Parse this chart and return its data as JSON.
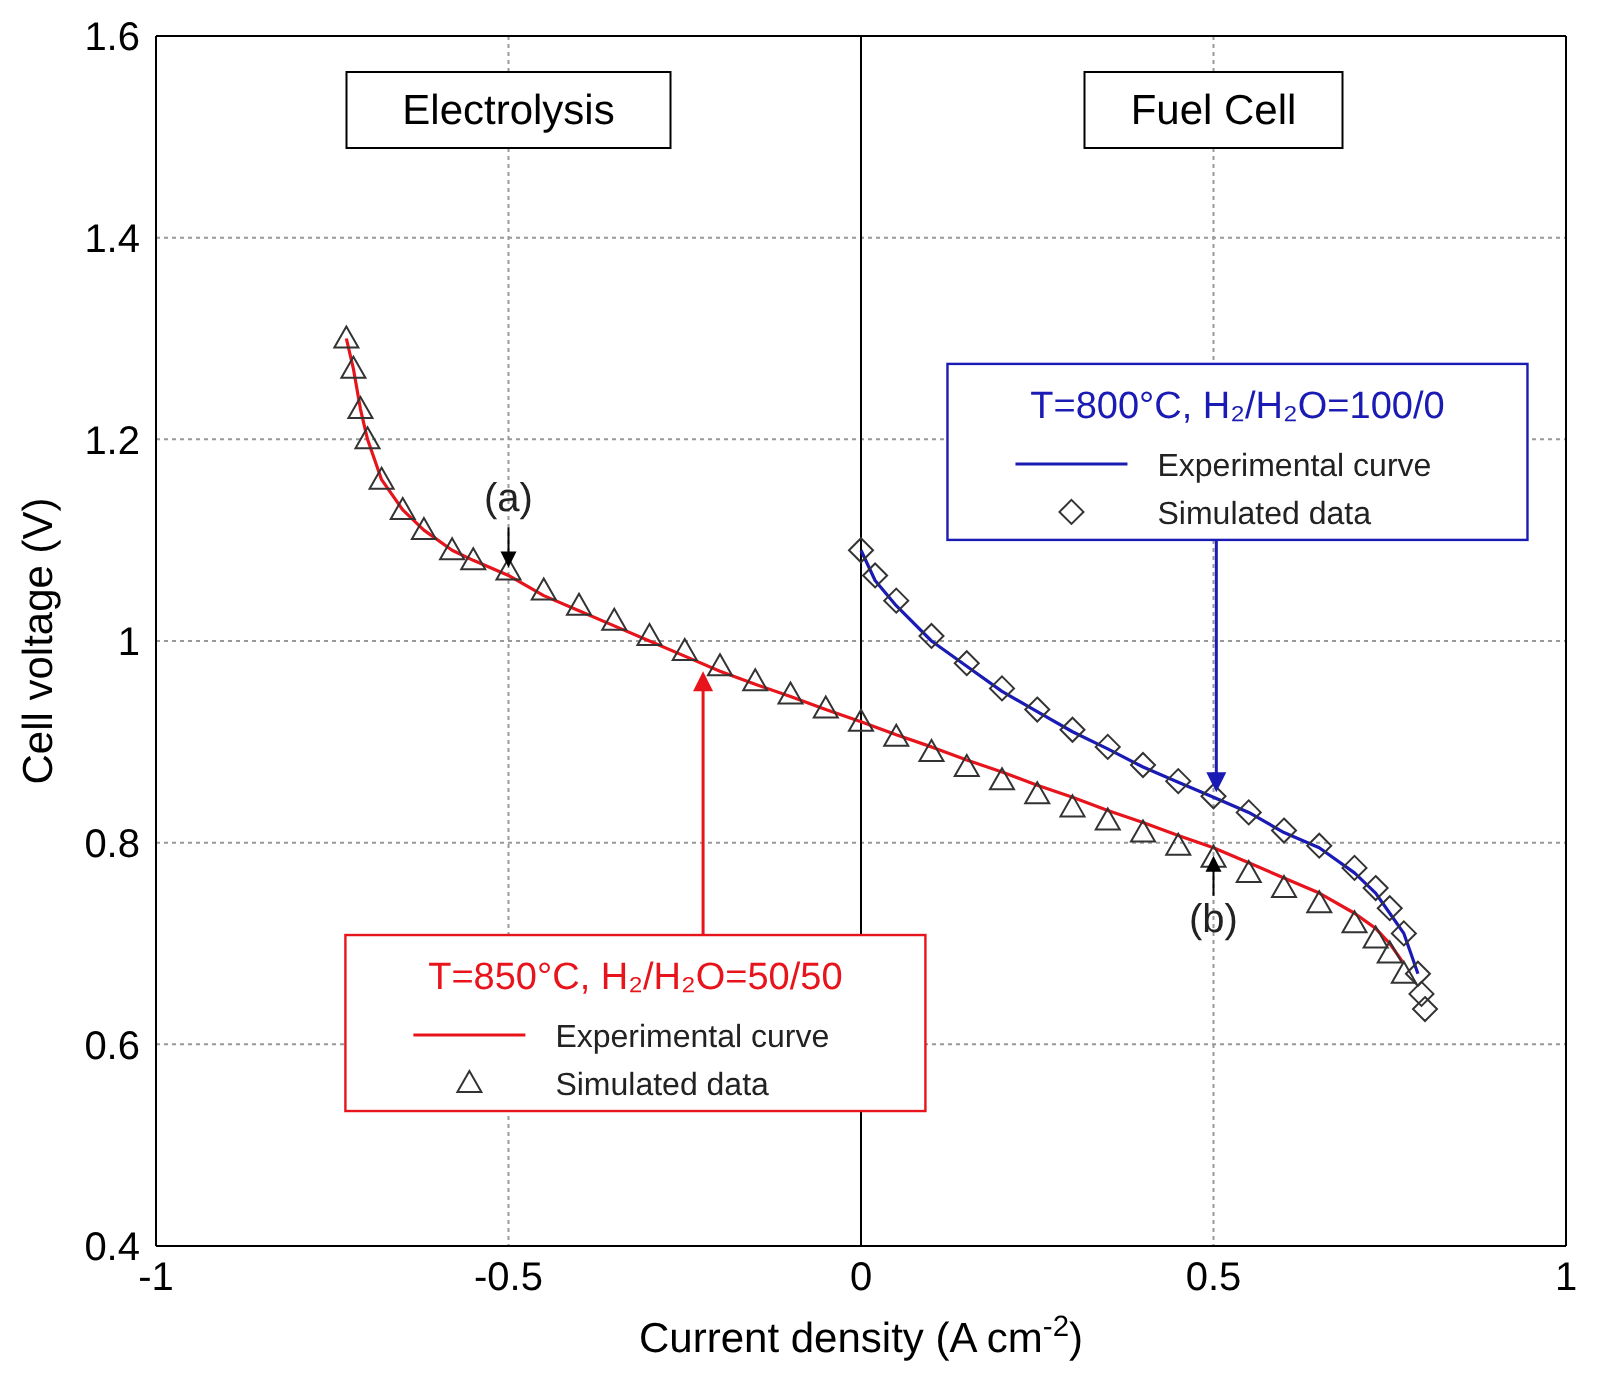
{
  "chart_data": {
    "type": "line",
    "xlabel": "Current density (A cm$^{-2}$)",
    "ylabel": "Cell voltage (V)",
    "xlim": [
      -1,
      1
    ],
    "xticks": [
      -1,
      -0.5,
      0,
      0.5,
      1
    ],
    "ylim": [
      0.4,
      1.6
    ],
    "yticks": [
      0.4,
      0.6,
      0.8,
      1,
      1.2,
      1.4,
      1.6
    ],
    "grid": true,
    "legend": "center",
    "ref_lines": [
      {
        "axis": "x",
        "value": 0,
        "color": "#000000",
        "line_style": "solid"
      }
    ],
    "annotations": [
      "Electrolysis",
      "Fuel Cell",
      {
        "text": "(a)",
        "x": -0.5,
        "y": 1.065
      },
      {
        "text": "(b)",
        "x": 0.5,
        "y": 0.795
      },
      "T=850°C, H₂/H₂O=50/50",
      "T=800°C, H₂/H₂O=100/0"
    ],
    "series": [
      {
        "name": "Experimental curve",
        "marker": "none",
        "color": "#e8141c",
        "x": [
          -0.73,
          -0.72,
          -0.71,
          -0.7,
          -0.68,
          -0.65,
          -0.62,
          -0.58,
          -0.55,
          -0.5,
          -0.45,
          -0.4,
          -0.35,
          -0.3,
          -0.25,
          -0.2,
          -0.15,
          -0.1,
          -0.05,
          0,
          0.05,
          0.1,
          0.15,
          0.2,
          0.25,
          0.3,
          0.35,
          0.4,
          0.45,
          0.5,
          0.55,
          0.6,
          0.65,
          0.7,
          0.73,
          0.75,
          0.77
        ],
        "values": [
          1.3,
          1.27,
          1.23,
          1.2,
          1.16,
          1.13,
          1.11,
          1.09,
          1.08,
          1.065,
          1.045,
          1.03,
          1.015,
          1.0,
          0.985,
          0.97,
          0.957,
          0.945,
          0.932,
          0.92,
          0.907,
          0.895,
          0.882,
          0.87,
          0.857,
          0.845,
          0.832,
          0.82,
          0.807,
          0.795,
          0.78,
          0.765,
          0.75,
          0.73,
          0.715,
          0.7,
          0.68
        ]
      },
      {
        "name": "Simulated data",
        "type": "scatter",
        "marker": "triangle",
        "color": "#333333",
        "x": [
          -0.73,
          -0.72,
          -0.71,
          -0.7,
          -0.68,
          -0.65,
          -0.62,
          -0.58,
          -0.55,
          -0.5,
          -0.45,
          -0.4,
          -0.35,
          -0.3,
          -0.25,
          -0.2,
          -0.15,
          -0.1,
          -0.05,
          0,
          0.05,
          0.1,
          0.15,
          0.2,
          0.25,
          0.3,
          0.35,
          0.4,
          0.45,
          0.5,
          0.55,
          0.6,
          0.65,
          0.7,
          0.73,
          0.75,
          0.77
        ],
        "values": [
          1.3,
          1.27,
          1.23,
          1.2,
          1.16,
          1.13,
          1.11,
          1.09,
          1.08,
          1.07,
          1.05,
          1.035,
          1.02,
          1.005,
          0.99,
          0.975,
          0.96,
          0.947,
          0.933,
          0.92,
          0.905,
          0.89,
          0.875,
          0.862,
          0.848,
          0.835,
          0.822,
          0.81,
          0.797,
          0.785,
          0.77,
          0.755,
          0.74,
          0.72,
          0.705,
          0.69,
          0.67
        ]
      },
      {
        "name": "Experimental curve",
        "marker": "none",
        "color": "#1a1ab4",
        "x": [
          0,
          0.02,
          0.05,
          0.1,
          0.15,
          0.2,
          0.25,
          0.3,
          0.35,
          0.4,
          0.45,
          0.5,
          0.55,
          0.6,
          0.65,
          0.7,
          0.73,
          0.75,
          0.77,
          0.78,
          0.79
        ],
        "values": [
          1.09,
          1.06,
          1.035,
          1.0,
          0.975,
          0.95,
          0.93,
          0.91,
          0.893,
          0.875,
          0.86,
          0.845,
          0.83,
          0.81,
          0.795,
          0.77,
          0.75,
          0.73,
          0.71,
          0.69,
          0.67
        ]
      },
      {
        "name": "Simulated data",
        "type": "scatter",
        "marker": "diamond",
        "color": "#333333",
        "x": [
          0,
          0.02,
          0.05,
          0.1,
          0.15,
          0.2,
          0.25,
          0.3,
          0.35,
          0.4,
          0.45,
          0.5,
          0.55,
          0.6,
          0.65,
          0.7,
          0.73,
          0.75,
          0.77,
          0.79,
          0.795,
          0.8
        ],
        "values": [
          1.09,
          1.065,
          1.04,
          1.005,
          0.978,
          0.953,
          0.932,
          0.912,
          0.895,
          0.877,
          0.861,
          0.846,
          0.83,
          0.812,
          0.797,
          0.775,
          0.755,
          0.735,
          0.71,
          0.67,
          0.65,
          0.635
        ]
      }
    ]
  }
}
